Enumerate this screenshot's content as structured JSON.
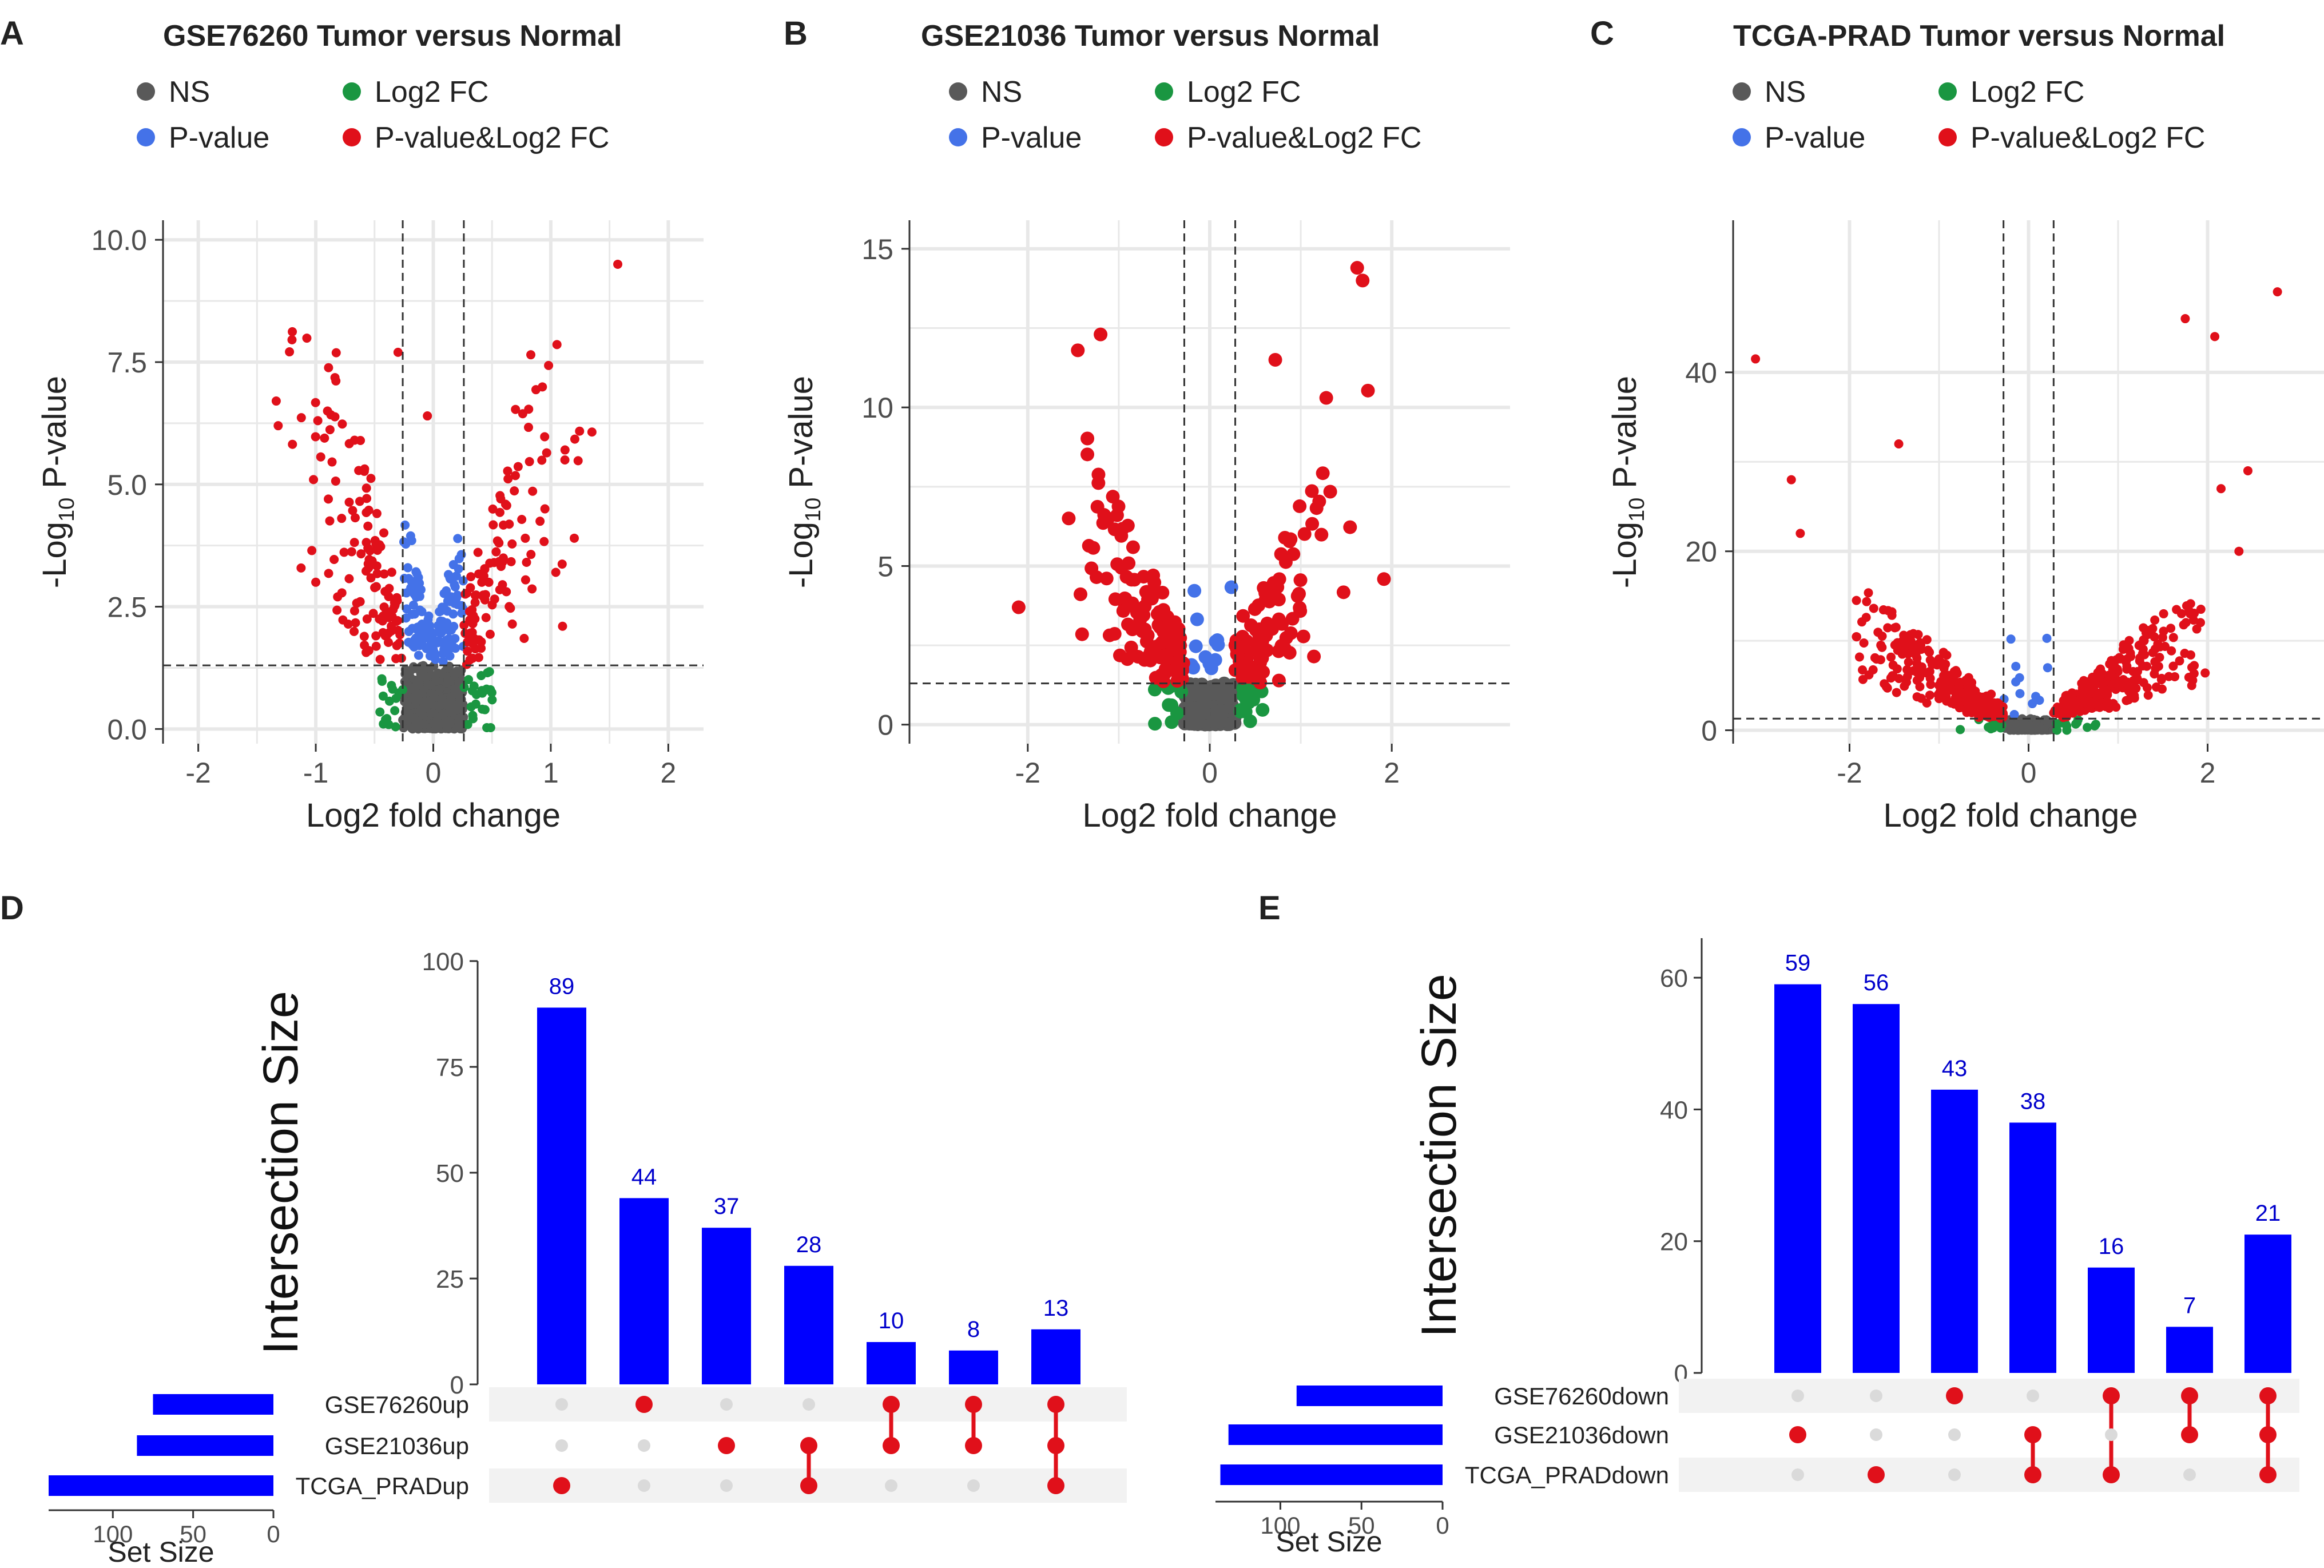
{
  "colors": {
    "ns": "#595959",
    "log2fc": "#1a9641",
    "pvalue": "#4472e8",
    "both": "#e0101a",
    "bar": "#0000ff",
    "dot_active": "#e0101a",
    "dot_inactive": "#dadada",
    "stripe": "#f2f2f2",
    "grid": "#e8e8e8",
    "label_blue": "#0000cc"
  },
  "volcano_legend": [
    {
      "key": "ns",
      "label": "NS"
    },
    {
      "key": "log2fc",
      "label": "Log2 FC"
    },
    {
      "key": "pvalue",
      "label": "P-value"
    },
    {
      "key": "both",
      "label": "P-value&Log2 FC"
    }
  ],
  "chart_data": [
    {
      "panel": "A",
      "type": "scatter",
      "title": "GSE76260 Tumor versus Normal",
      "xlabel": "Log2 fold change",
      "ylabel": "-Log10 P-value",
      "xlim": [
        -2.3,
        2.3
      ],
      "ylim": [
        -0.3,
        10.4
      ],
      "xticks": [
        -2,
        -1,
        0,
        1,
        2
      ],
      "xtick_labels": [
        "-2",
        "-1",
        "0",
        "1",
        "2"
      ],
      "yticks": [
        0.0,
        2.5,
        5.0,
        7.5,
        10.0
      ],
      "ytick_labels": [
        "0.0",
        "2.5",
        "5.0",
        "7.5",
        "10.0"
      ],
      "fc_cutoff": 0.26,
      "p_cutoff": 1.3,
      "highlight_points": [
        [
          1.57,
          9.5
        ],
        [
          -1.32,
          6.2
        ],
        [
          -0.3,
          7.7
        ],
        [
          0.83,
          7.65
        ],
        [
          -0.9,
          6.5
        ],
        [
          1.12,
          5.5
        ],
        [
          -0.05,
          6.4
        ],
        [
          -1.0,
          3.0
        ],
        [
          0.95,
          4.5
        ],
        [
          1.2,
          3.9
        ],
        [
          1.1,
          2.1
        ]
      ],
      "sample_counts": {
        "both": 230,
        "pvalue": 140,
        "log2fc": 40,
        "ns": 900
      }
    },
    {
      "panel": "B",
      "type": "scatter",
      "title": "GSE21036 Tumor versus Normal",
      "xlabel": "Log2 fold change",
      "ylabel": "-Log10 P-value",
      "xlim": [
        -3.3,
        3.3
      ],
      "ylim": [
        -0.6,
        15.9
      ],
      "xticks": [
        -2,
        0,
        2
      ],
      "xtick_labels": [
        "-2",
        "0",
        "2"
      ],
      "yticks": [
        0,
        5,
        10,
        15
      ],
      "ytick_labels": [
        "0",
        "5",
        "10",
        "15"
      ],
      "fc_cutoff": 0.28,
      "p_cutoff": 1.3,
      "highlight_points": [
        [
          1.62,
          14.4
        ],
        [
          1.68,
          14.0
        ],
        [
          -2.1,
          3.7
        ],
        [
          -1.2,
          12.3
        ],
        [
          -1.45,
          11.8
        ],
        [
          0.72,
          11.5
        ],
        [
          1.28,
          10.3
        ],
        [
          -1.55,
          6.5
        ]
      ],
      "sample_counts": {
        "both": 210,
        "pvalue": 14,
        "log2fc": 22,
        "ns": 500
      }
    },
    {
      "panel": "C",
      "type": "scatter",
      "title": "TCGA-PRAD Tumor versus Normal",
      "xlabel": "Log2 fold change",
      "ylabel": "-Log10 P-value",
      "xlim": [
        -3.3,
        3.3
      ],
      "ylim": [
        -1.5,
        57
      ],
      "xticks": [
        -2,
        0,
        2
      ],
      "xtick_labels": [
        "-2",
        "0",
        "2"
      ],
      "yticks": [
        0,
        20,
        40
      ],
      "ytick_labels": [
        "0",
        "20",
        "40"
      ],
      "fc_cutoff": 0.28,
      "p_cutoff": 1.3,
      "highlight_points": [
        [
          2.78,
          49
        ],
        [
          -3.05,
          41.5
        ],
        [
          2.08,
          44
        ],
        [
          1.75,
          46
        ],
        [
          -2.65,
          28
        ],
        [
          -2.55,
          22
        ],
        [
          -1.45,
          32
        ],
        [
          2.45,
          29
        ],
        [
          2.15,
          27
        ],
        [
          2.35,
          20
        ]
      ],
      "sample_counts": {
        "both": 520,
        "pvalue": 12,
        "log2fc": 25,
        "ns": 600
      }
    }
  ],
  "upset_charts": [
    {
      "panel": "D",
      "type": "bar",
      "ylabel": "Intersection Size",
      "ylim": [
        0,
        100
      ],
      "yticks": [
        0,
        25,
        50,
        75,
        100
      ],
      "values": [
        89,
        44,
        37,
        28,
        10,
        8,
        13
      ],
      "value_labels": [
        "89",
        "44",
        "37",
        "28",
        "10",
        "8",
        "13"
      ],
      "set_names": [
        "GSE76260up",
        "GSE21036up",
        "TCGA_PRADup"
      ],
      "set_sizes": [
        75,
        85,
        140
      ],
      "set_size_label": "Set Size",
      "set_size_ticks": [
        100,
        50,
        0
      ],
      "set_size_max": 140,
      "membership": [
        [
          2
        ],
        [
          0
        ],
        [
          1
        ],
        [
          1,
          2
        ],
        [
          0,
          1
        ],
        [
          0,
          1
        ],
        [
          0,
          1,
          2
        ]
      ]
    },
    {
      "panel": "E",
      "type": "bar",
      "ylabel": "Intersection Size",
      "ylim": [
        0,
        66
      ],
      "yticks": [
        0,
        20,
        40,
        60
      ],
      "values": [
        59,
        56,
        43,
        38,
        16,
        7,
        21
      ],
      "value_labels": [
        "59",
        "56",
        "43",
        "38",
        "16",
        "7",
        "21"
      ],
      "set_names": [
        "GSE76260down",
        "GSE21036down",
        "TCGA_PRADdown"
      ],
      "set_sizes": [
        90,
        132,
        137
      ],
      "set_size_label": "Set Size",
      "set_size_ticks": [
        100,
        50,
        0
      ],
      "set_size_max": 140,
      "membership": [
        [
          1
        ],
        [
          2
        ],
        [
          0
        ],
        [
          1,
          2
        ],
        [
          0,
          2
        ],
        [
          0,
          1
        ],
        [
          0,
          1,
          2
        ]
      ]
    }
  ]
}
